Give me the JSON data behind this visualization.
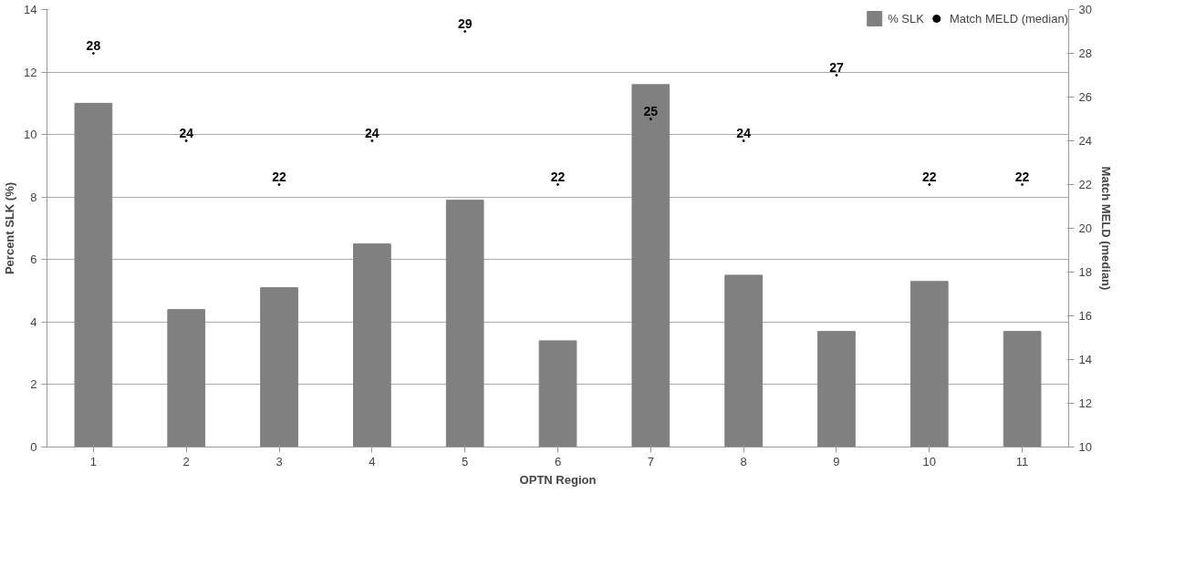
{
  "chart_data": {
    "type": "bar",
    "xlabel": "OPTN Region",
    "ylabel": "Percent SLK (%)",
    "y2label": "Match MELD (median)",
    "categories": [
      "1",
      "2",
      "3",
      "4",
      "5",
      "6",
      "7",
      "8",
      "9",
      "10",
      "11"
    ],
    "series": [
      {
        "name": "% SLK",
        "color": "#808080",
        "values": [
          11.0,
          4.4,
          5.1,
          6.5,
          7.9,
          3.4,
          11.6,
          5.5,
          3.7,
          5.3,
          3.7
        ]
      },
      {
        "name": "Match MELD (median)",
        "type": "scatter",
        "marker": "none",
        "axis": "y2",
        "color": "#000000",
        "values": [
          28,
          24,
          22,
          24,
          29,
          22,
          25,
          24,
          27,
          22,
          22
        ],
        "value_labels": [
          "28",
          "24",
          "22",
          "24",
          "29",
          "22",
          "25",
          "24",
          "27",
          "22",
          "22"
        ]
      }
    ],
    "ylim": [
      0,
      14
    ],
    "yticks": [
      0,
      2,
      4,
      6,
      8,
      10,
      12,
      14
    ],
    "y2lim": [
      10,
      30
    ],
    "y2ticks": [
      10,
      12,
      14,
      16,
      18,
      20,
      22,
      24,
      26,
      28,
      30
    ],
    "grid": "y",
    "legend": "top right"
  }
}
